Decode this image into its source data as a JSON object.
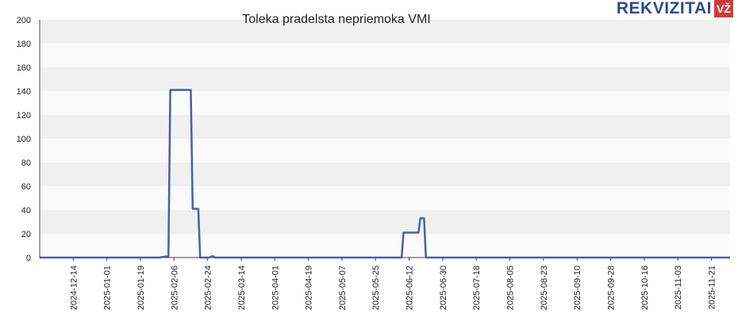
{
  "brand": {
    "name": "REKVIZITAI",
    "badge": "VŽ",
    "color": "#2f4a8f",
    "badge_color": "#d23a3a"
  },
  "chart_data": {
    "type": "line",
    "title": "Toleka pradelsta nepriemoka VMI",
    "xlabel": "",
    "ylabel": "",
    "ylim": [
      0,
      200
    ],
    "yticks": [
      0,
      20,
      40,
      60,
      80,
      100,
      120,
      140,
      160,
      180,
      200
    ],
    "xlim": [
      "2024-11-26",
      "2025-12-01"
    ],
    "xticks": [
      "2024-12-14",
      "2025-01-01",
      "2025-01-19",
      "2025-02-06",
      "2025-02-24",
      "2025-03-14",
      "2025-04-01",
      "2025-04-19",
      "2025-05-07",
      "2025-05-25",
      "2025-06-12",
      "2025-06-30",
      "2025-07-18",
      "2025-08-05",
      "2025-08-23",
      "2025-09-10",
      "2025-09-28",
      "2025-10-16",
      "2025-11-03",
      "2025-11-21"
    ],
    "grid": "horizontal-bands",
    "line_color": "#4a5fa5",
    "series": [
      {
        "points": [
          [
            "2024-11-26",
            0
          ],
          [
            "2025-01-29",
            0
          ],
          [
            "2025-02-02",
            1
          ],
          [
            "2025-02-03",
            1
          ],
          [
            "2025-02-04",
            141
          ],
          [
            "2025-02-15",
            141
          ],
          [
            "2025-02-16",
            41
          ],
          [
            "2025-02-19",
            41
          ],
          [
            "2025-02-20",
            0
          ],
          [
            "2025-02-25",
            0
          ],
          [
            "2025-02-26",
            1
          ],
          [
            "2025-02-27",
            1
          ],
          [
            "2025-02-28",
            0
          ],
          [
            "2025-06-08",
            0
          ],
          [
            "2025-06-09",
            21
          ],
          [
            "2025-06-17",
            21
          ],
          [
            "2025-06-18",
            33
          ],
          [
            "2025-06-20",
            33
          ],
          [
            "2025-06-21",
            0
          ],
          [
            "2025-12-01",
            0
          ]
        ]
      }
    ]
  }
}
